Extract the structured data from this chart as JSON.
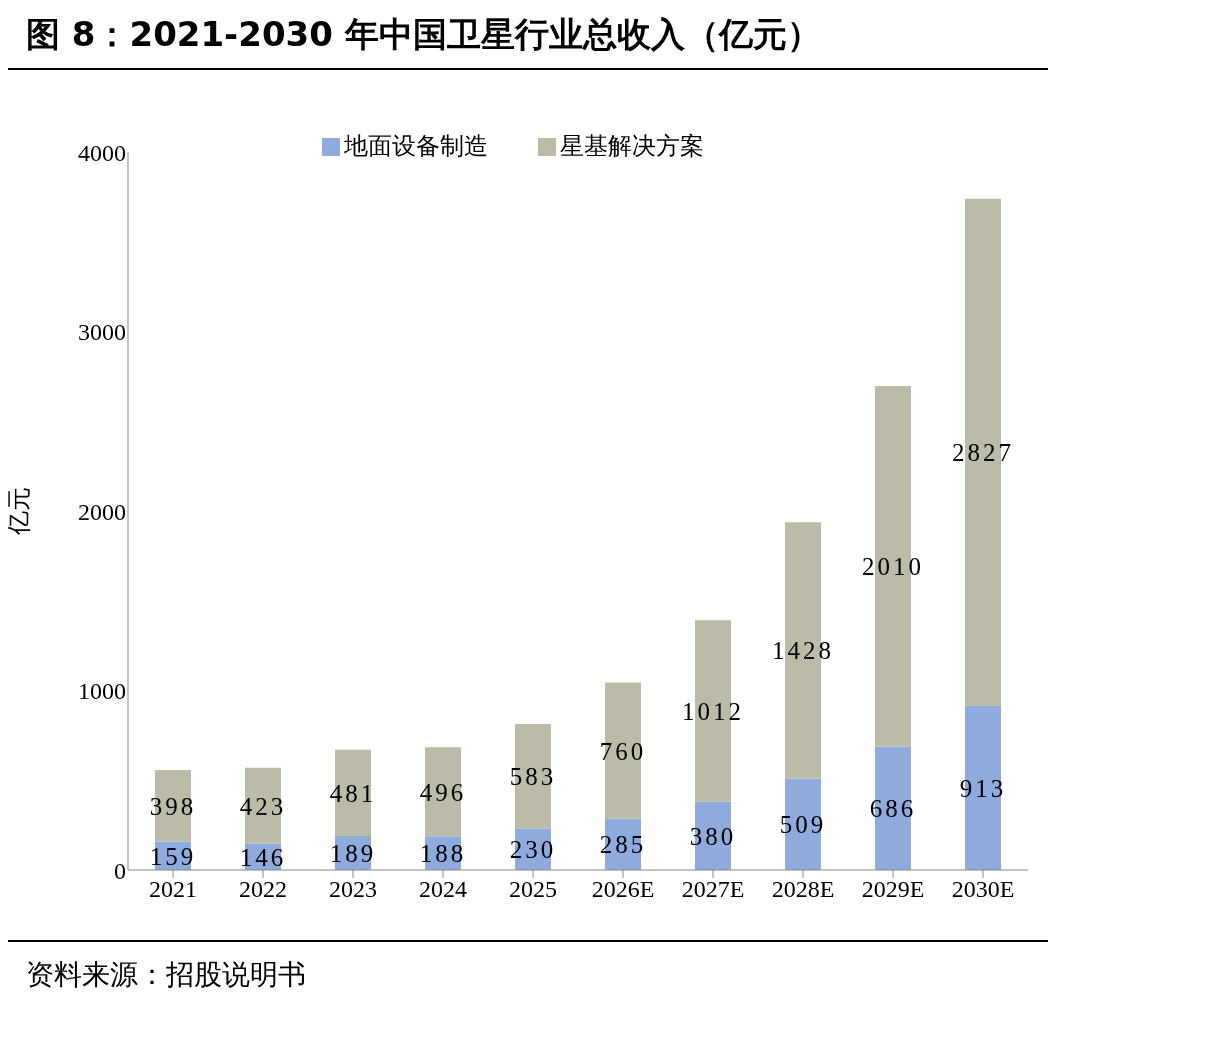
{
  "chart_data": {
    "type": "bar",
    "title": "图 8：2021-2030 年中国卫星行业总收入（亿元）",
    "ylabel": "亿元",
    "categories": [
      "2021",
      "2022",
      "2023",
      "2024",
      "2025",
      "2026E",
      "2027E",
      "2028E",
      "2029E",
      "2030E"
    ],
    "series": [
      {
        "name": "地面设备制造",
        "color": "#8faadc",
        "values": [
          159,
          146,
          189,
          188,
          230,
          285,
          380,
          509,
          686,
          913
        ]
      },
      {
        "name": "星基解决方案",
        "color": "#bbbba8",
        "values": [
          398,
          423,
          481,
          496,
          583,
          760,
          1012,
          1428,
          2010,
          2827
        ]
      }
    ],
    "stacked": true,
    "data_labels": true,
    "legend": "top",
    "ylim": [
      0,
      4000
    ],
    "yticks": [
      0,
      1000,
      2000,
      3000,
      4000
    ],
    "grid": false,
    "annotations": [
      "资料来源：招股说明书"
    ]
  }
}
